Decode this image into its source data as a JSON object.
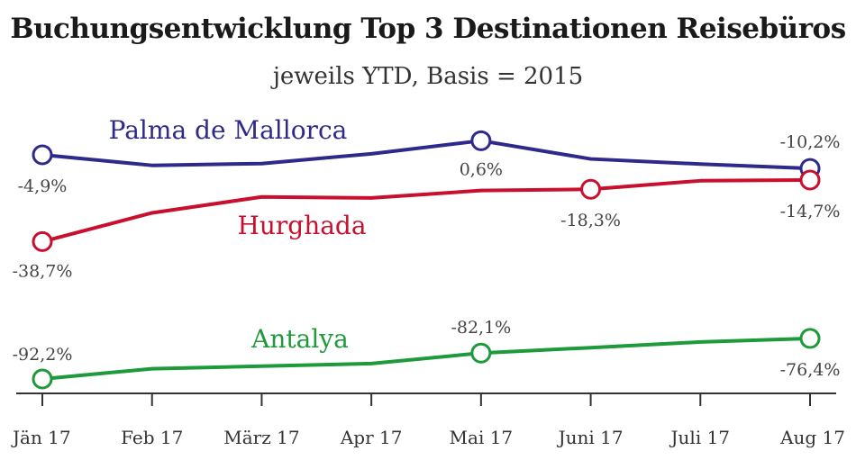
{
  "chart_data": {
    "type": "line",
    "title": "Buchungsentwicklung Top 3 Destinationen Reisebüros",
    "subtitle": "jeweils YTD, Basis = 2015",
    "categories": [
      "Jän 17",
      "Feb 17",
      "März 17",
      "Apr 17",
      "Mai 17",
      "Juni 17",
      "Juli 17",
      "Aug 17"
    ],
    "series": [
      {
        "name": "Palma de Mallorca",
        "color": "#2e2a8c",
        "values": [
          -4.9,
          -9.0,
          -8.3,
          -4.5,
          0.6,
          -6.5,
          -8.5,
          -10.2
        ],
        "labels": [
          {
            "index": 0,
            "text": "-4,9%"
          },
          {
            "index": 4,
            "text": "0,6%"
          },
          {
            "index": 7,
            "text": "-10,2%"
          }
        ]
      },
      {
        "name": "Hurghada",
        "color": "#c8102e",
        "values": [
          -38.7,
          -27.5,
          -21.3,
          -21.7,
          -18.8,
          -18.3,
          -15.0,
          -14.7
        ],
        "labels": [
          {
            "index": 0,
            "text": "-38,7%"
          },
          {
            "index": 5,
            "text": "-18,3%"
          },
          {
            "index": 7,
            "text": "-14,7%"
          }
        ]
      },
      {
        "name": "Antalya",
        "color": "#1e9a3a",
        "values": [
          -92.2,
          -88.2,
          -87.2,
          -86.2,
          -82.1,
          -80.0,
          -77.8,
          -76.4
        ],
        "labels": [
          {
            "index": 0,
            "text": "-92,2%"
          },
          {
            "index": 4,
            "text": "-82,1%"
          },
          {
            "index": 7,
            "text": "-76,4%"
          }
        ]
      }
    ],
    "ylim": [
      -100,
      5
    ],
    "grid": false,
    "legend": "inline"
  }
}
